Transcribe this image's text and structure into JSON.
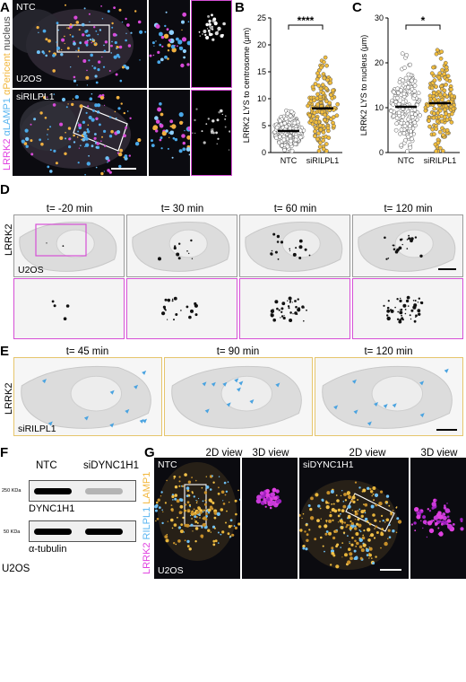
{
  "panels": {
    "A": "A",
    "B": "B",
    "C": "C",
    "D": "D",
    "E": "E",
    "F": "F",
    "G": "G"
  },
  "panelA": {
    "top_label": "NTC",
    "cell_label": "U2OS",
    "bottom_label": "siRILPL1",
    "side_labels": [
      {
        "text": "LRRK2",
        "color": "#e040e0"
      },
      {
        "text": "αLAMP1",
        "color": "#58b4f0"
      },
      {
        "text": "αPericent",
        "color": "#f2b63a"
      },
      {
        "text": "nucleus",
        "color": "#444444"
      }
    ]
  },
  "panelD": {
    "ylabel": "LRRK2",
    "cell_label": "U2OS",
    "times": [
      "t= -20 min",
      "t= 30 min",
      "t= 60 min",
      "t= 120 min"
    ]
  },
  "panelE": {
    "ylabel": "LRRK2",
    "cell_label": "siRILPL1",
    "times": [
      "t= 45 min",
      "t= 90 min",
      "t= 120 min"
    ]
  },
  "panelF": {
    "col1": "NTC",
    "col2": "siDYNC1H1",
    "mw1": "250 KDa",
    "band1": "DYNC1H1",
    "mw2": "50 KDa",
    "band2": "α-tubulin",
    "cell_label": "U2OS",
    "band1_intensity": [
      1.0,
      0.25
    ],
    "band2_intensity": [
      1.0,
      1.0
    ]
  },
  "panelG": {
    "view2d": "2D view",
    "view3d": "3D view",
    "left_label": "NTC",
    "right_label": "siDYNC1H1",
    "cell_label": "U2OS",
    "side_labels": [
      {
        "text": "LRRK2",
        "color": "#e040e0"
      },
      {
        "text": "RILPL1",
        "color": "#58b4f0"
      },
      {
        "text": "LAMP1",
        "color": "#f2b63a"
      }
    ]
  },
  "chart_data": [
    {
      "type": "scatter",
      "panel": "B",
      "ylabel": "LRRK2 LYS to centrosome (μm)",
      "categories": [
        "NTC",
        "siRILPL1"
      ],
      "ylim": [
        0,
        25
      ],
      "yticks": [
        0,
        5,
        10,
        15,
        20,
        25
      ],
      "means": [
        4,
        8.2
      ],
      "significance": "****",
      "series_colors": [
        "#ffffff",
        "#f2bd3c"
      ]
    },
    {
      "type": "scatter",
      "panel": "C",
      "ylabel": "LRRK2 LYS to nucleus (μm)",
      "categories": [
        "NTC",
        "siRILPL1"
      ],
      "ylim": [
        0,
        30
      ],
      "yticks": [
        0,
        10,
        20,
        30
      ],
      "means": [
        10.2,
        11
      ],
      "significance": "*",
      "series_colors": [
        "#ffffff",
        "#f2bd3c"
      ]
    }
  ]
}
